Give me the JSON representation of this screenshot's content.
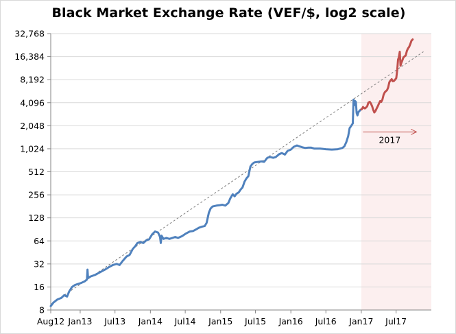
{
  "chart_data": {
    "type": "line",
    "title": "Black Market Exchange Rate (VEF/$, log2 scale)",
    "xlabel": "",
    "ylabel": "",
    "y_scale": "log2",
    "ylim": [
      8,
      32768
    ],
    "y_ticks": [
      8,
      16,
      32,
      64,
      128,
      256,
      512,
      1024,
      2048,
      4096,
      8192,
      16384,
      32768
    ],
    "y_tick_labels": [
      "8",
      "16",
      "32",
      "64",
      "128",
      "256",
      "512",
      "1,024",
      "2,048",
      "4,096",
      "8,192",
      "16,384",
      "32,768"
    ],
    "x_range": [
      "2012-08-01",
      "2017-12-31"
    ],
    "x_ticks": [
      "2012-08-01",
      "2013-01-01",
      "2013-07-01",
      "2014-01-01",
      "2014-07-01",
      "2015-01-01",
      "2015-07-01",
      "2016-01-01",
      "2016-07-01",
      "2017-01-01",
      "2017-07-01"
    ],
    "x_tick_labels": [
      "Aug12",
      "Jan13",
      "Jul13",
      "Jan14",
      "Jul14",
      "Jan15",
      "Jul15",
      "Jan16",
      "Jul16",
      "Jan17",
      "Jul17"
    ],
    "grid": "horizontal",
    "highlight_region": {
      "start": "2017-01-01",
      "end": "2017-12-31",
      "color": "#fcefef"
    },
    "annotation": {
      "text": "2017",
      "arrow_from": "2017-01-10",
      "arrow_to": "2017-10-15",
      "y": 1700,
      "color": "#c0504d"
    },
    "trendline": {
      "style": "dashed",
      "color": "#7f7f7f",
      "points": [
        [
          "2012-08-01",
          9.5
        ],
        [
          "2017-11-20",
          19000
        ]
      ]
    },
    "series": [
      {
        "color": "#4f81bd",
        "points": [
          [
            "2012-08-01",
            9
          ],
          [
            "2012-08-15",
            10
          ],
          [
            "2012-09-05",
            11
          ],
          [
            "2012-09-25",
            11.5
          ],
          [
            "2012-10-10",
            12.5
          ],
          [
            "2012-10-25",
            12
          ],
          [
            "2012-11-05",
            14
          ],
          [
            "2012-11-20",
            16
          ],
          [
            "2012-12-05",
            17
          ],
          [
            "2012-12-20",
            17.5
          ],
          [
            "2013-01-05",
            18
          ],
          [
            "2013-01-25",
            19
          ],
          [
            "2013-02-05",
            20
          ],
          [
            "2013-02-08",
            27
          ],
          [
            "2013-02-11",
            21
          ],
          [
            "2013-02-25",
            22
          ],
          [
            "2013-03-20",
            23
          ],
          [
            "2013-04-15",
            25
          ],
          [
            "2013-05-10",
            27
          ],
          [
            "2013-05-30",
            29
          ],
          [
            "2013-06-20",
            31
          ],
          [
            "2013-07-10",
            32
          ],
          [
            "2013-07-25",
            31
          ],
          [
            "2013-08-10",
            35
          ],
          [
            "2013-08-30",
            40
          ],
          [
            "2013-09-15",
            42
          ],
          [
            "2013-10-01",
            50
          ],
          [
            "2013-10-15",
            55
          ],
          [
            "2013-10-25",
            60
          ],
          [
            "2013-11-10",
            62
          ],
          [
            "2013-11-25",
            60
          ],
          [
            "2013-12-10",
            65
          ],
          [
            "2013-12-25",
            67
          ],
          [
            "2014-01-10",
            78
          ],
          [
            "2014-01-25",
            85
          ],
          [
            "2014-02-10",
            82
          ],
          [
            "2014-02-20",
            72
          ],
          [
            "2014-02-24",
            60
          ],
          [
            "2014-02-28",
            75
          ],
          [
            "2014-03-10",
            68
          ],
          [
            "2014-03-25",
            70
          ],
          [
            "2014-04-10",
            68
          ],
          [
            "2014-04-25",
            70
          ],
          [
            "2014-05-10",
            72
          ],
          [
            "2014-05-25",
            70
          ],
          [
            "2014-06-15",
            74
          ],
          [
            "2014-07-05",
            80
          ],
          [
            "2014-07-25",
            85
          ],
          [
            "2014-08-10",
            86
          ],
          [
            "2014-08-25",
            90
          ],
          [
            "2014-09-10",
            95
          ],
          [
            "2014-09-25",
            98
          ],
          [
            "2014-10-10",
            100
          ],
          [
            "2014-10-20",
            110
          ],
          [
            "2014-11-01",
            150
          ],
          [
            "2014-11-10",
            170
          ],
          [
            "2014-11-20",
            180
          ],
          [
            "2014-12-10",
            185
          ],
          [
            "2014-12-25",
            187
          ],
          [
            "2015-01-10",
            190
          ],
          [
            "2015-01-25",
            185
          ],
          [
            "2015-02-10",
            200
          ],
          [
            "2015-02-20",
            230
          ],
          [
            "2015-03-05",
            260
          ],
          [
            "2015-03-15",
            245
          ],
          [
            "2015-03-25",
            265
          ],
          [
            "2015-04-05",
            275
          ],
          [
            "2015-04-15",
            300
          ],
          [
            "2015-04-25",
            320
          ],
          [
            "2015-05-05",
            380
          ],
          [
            "2015-05-15",
            420
          ],
          [
            "2015-05-25",
            450
          ],
          [
            "2015-06-05",
            600
          ],
          [
            "2015-06-15",
            650
          ],
          [
            "2015-06-25",
            680
          ],
          [
            "2015-07-15",
            690
          ],
          [
            "2015-08-01",
            700
          ],
          [
            "2015-08-15",
            690
          ],
          [
            "2015-09-01",
            780
          ],
          [
            "2015-09-15",
            800
          ],
          [
            "2015-10-01",
            780
          ],
          [
            "2015-10-15",
            800
          ],
          [
            "2015-11-01",
            870
          ],
          [
            "2015-11-15",
            900
          ],
          [
            "2015-12-01",
            860
          ],
          [
            "2015-12-15",
            960
          ],
          [
            "2016-01-01",
            1000
          ],
          [
            "2016-01-15",
            1080
          ],
          [
            "2016-02-01",
            1130
          ],
          [
            "2016-02-15",
            1100
          ],
          [
            "2016-03-01",
            1070
          ],
          [
            "2016-03-15",
            1050
          ],
          [
            "2016-04-01",
            1060
          ],
          [
            "2016-04-15",
            1060
          ],
          [
            "2016-05-01",
            1030
          ],
          [
            "2016-06-01",
            1030
          ],
          [
            "2016-07-01",
            1010
          ],
          [
            "2016-08-01",
            1000
          ],
          [
            "2016-09-01",
            1010
          ],
          [
            "2016-09-25",
            1050
          ],
          [
            "2016-10-05",
            1100
          ],
          [
            "2016-10-15",
            1250
          ],
          [
            "2016-10-25",
            1500
          ],
          [
            "2016-11-01",
            1900
          ],
          [
            "2016-11-10",
            2050
          ],
          [
            "2016-11-18",
            2200
          ],
          [
            "2016-11-22",
            4500
          ],
          [
            "2016-11-26",
            3800
          ],
          [
            "2016-11-30",
            4300
          ],
          [
            "2016-12-04",
            4200
          ],
          [
            "2016-12-08",
            3000
          ],
          [
            "2016-12-12",
            2800
          ],
          [
            "2016-12-18",
            3100
          ],
          [
            "2016-12-28",
            3300
          ],
          [
            "2017-01-01",
            3350
          ]
        ]
      },
      {
        "color": "#c0504d",
        "points": [
          [
            "2017-01-01",
            3350
          ],
          [
            "2017-01-05",
            3400
          ],
          [
            "2017-01-10",
            3600
          ],
          [
            "2017-01-15",
            3500
          ],
          [
            "2017-01-20",
            3450
          ],
          [
            "2017-01-26",
            3550
          ],
          [
            "2017-02-01",
            3700
          ],
          [
            "2017-02-07",
            4100
          ],
          [
            "2017-02-14",
            4200
          ],
          [
            "2017-02-20",
            4000
          ],
          [
            "2017-02-26",
            3700
          ],
          [
            "2017-03-04",
            3300
          ],
          [
            "2017-03-10",
            3050
          ],
          [
            "2017-03-16",
            3200
          ],
          [
            "2017-03-22",
            3450
          ],
          [
            "2017-03-28",
            3700
          ],
          [
            "2017-04-03",
            4000
          ],
          [
            "2017-04-09",
            4300
          ],
          [
            "2017-04-15",
            4200
          ],
          [
            "2017-04-21",
            4500
          ],
          [
            "2017-04-27",
            5200
          ],
          [
            "2017-05-03",
            5600
          ],
          [
            "2017-05-09",
            5800
          ],
          [
            "2017-05-15",
            6000
          ],
          [
            "2017-05-21",
            6500
          ],
          [
            "2017-05-27",
            7600
          ],
          [
            "2017-06-02",
            8000
          ],
          [
            "2017-06-08",
            8300
          ],
          [
            "2017-06-14",
            7800
          ],
          [
            "2017-06-20",
            7900
          ],
          [
            "2017-06-26",
            8200
          ],
          [
            "2017-07-02",
            8600
          ],
          [
            "2017-07-07",
            11000
          ],
          [
            "2017-07-11",
            15000
          ],
          [
            "2017-07-15",
            16000
          ],
          [
            "2017-07-20",
            19000
          ],
          [
            "2017-07-24",
            12500
          ],
          [
            "2017-07-28",
            13500
          ],
          [
            "2017-08-02",
            14500
          ],
          [
            "2017-08-08",
            16000
          ],
          [
            "2017-08-14",
            16500
          ],
          [
            "2017-08-20",
            17000
          ],
          [
            "2017-08-26",
            19500
          ],
          [
            "2017-09-01",
            21000
          ],
          [
            "2017-09-07",
            22000
          ],
          [
            "2017-09-13",
            24000
          ],
          [
            "2017-09-19",
            26500
          ],
          [
            "2017-09-25",
            27500
          ]
        ]
      }
    ]
  }
}
